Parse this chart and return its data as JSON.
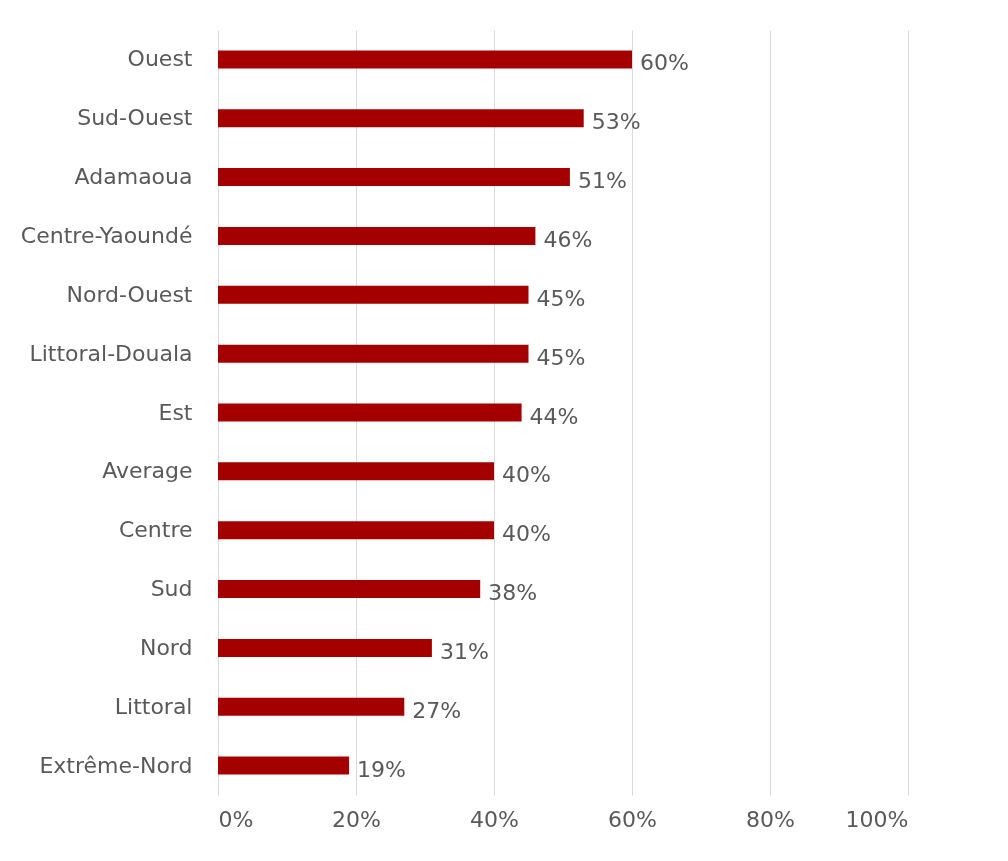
{
  "chart_data": {
    "type": "bar",
    "orientation": "horizontal",
    "categories": [
      "Ouest",
      "Sud-Ouest",
      "Adamaoua",
      "Centre-Yaoundé",
      "Nord-Ouest",
      "Littoral-Douala",
      "Est",
      "Average",
      "Centre",
      "Sud",
      "Nord",
      "Littoral",
      "Extrême-Nord"
    ],
    "values": [
      60,
      53,
      51,
      46,
      45,
      45,
      44,
      40,
      40,
      38,
      31,
      27,
      19
    ],
    "value_labels": [
      "60%",
      "53%",
      "51%",
      "46%",
      "45%",
      "45%",
      "44%",
      "40%",
      "40%",
      "38%",
      "31%",
      "27%",
      "19%"
    ],
    "color": "#a50000",
    "xlim": [
      0,
      100
    ],
    "xticks": [
      {
        "value": 0,
        "label": "0%"
      },
      {
        "value": 20,
        "label": "20%"
      },
      {
        "value": 40,
        "label": "40%"
      },
      {
        "value": 60,
        "label": "60%"
      },
      {
        "value": 80,
        "label": "80%"
      },
      {
        "value": 100,
        "label": "100%"
      }
    ],
    "grid": "x"
  }
}
